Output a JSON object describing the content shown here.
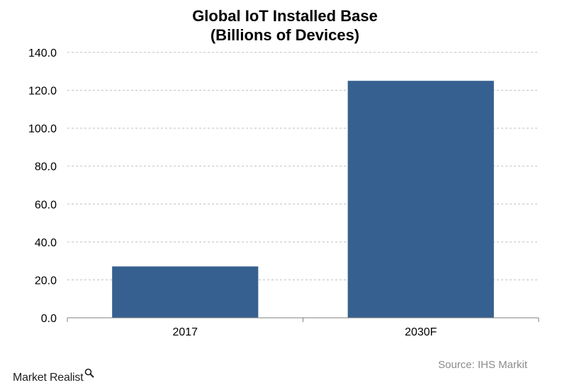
{
  "chart_data": {
    "type": "bar",
    "title": "Global IoT Installed Base",
    "subtitle": "(Billions of Devices)",
    "categories": [
      "2017",
      "2030F"
    ],
    "values": [
      27.1,
      125.0
    ],
    "ylim": [
      0,
      140
    ],
    "yticks": [
      0,
      20,
      40,
      60,
      80,
      100,
      120,
      140
    ],
    "ytick_labels": [
      "0.0",
      "20.0",
      "40.0",
      "60.0",
      "80.0",
      "100.0",
      "120.0",
      "140.0"
    ],
    "grid": true,
    "bar_color": "#36608F",
    "grid_color": "#BFBFBF"
  },
  "footer": {
    "source": "Source: IHS Markit",
    "logo_text": "Market Realist"
  },
  "logo_icon": "magnifier-icon"
}
